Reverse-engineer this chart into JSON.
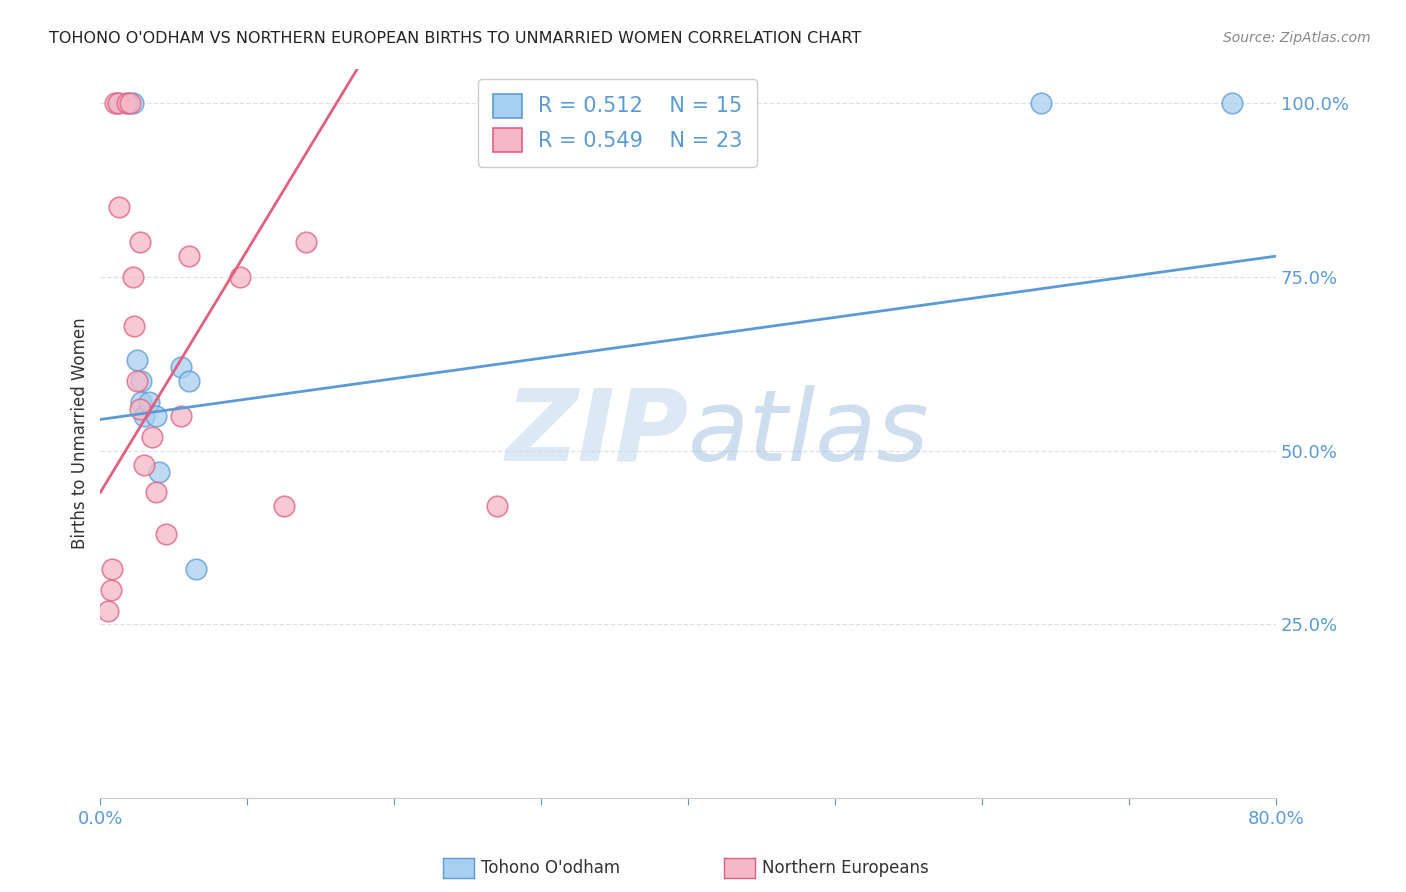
{
  "title": "TOHONO O'ODHAM VS NORTHERN EUROPEAN BIRTHS TO UNMARRIED WOMEN CORRELATION CHART",
  "source": "Source: ZipAtlas.com",
  "ylabel": "Births to Unmarried Women",
  "xlim": [
    0.0,
    0.8
  ],
  "ylim": [
    0.0,
    1.05
  ],
  "x_ticks": [
    0.0,
    0.1,
    0.2,
    0.3,
    0.4,
    0.5,
    0.6,
    0.7,
    0.8
  ],
  "x_tick_labels": [
    "0.0%",
    "",
    "",
    "",
    "",
    "",
    "",
    "",
    "80.0%"
  ],
  "y_ticks": [
    0.0,
    0.25,
    0.5,
    0.75,
    1.0
  ],
  "y_tick_labels": [
    "",
    "25.0%",
    "50.0%",
    "75.0%",
    "100.0%"
  ],
  "legend_r1": "R = 0.512",
  "legend_n1": "N = 15",
  "legend_r2": "R = 0.549",
  "legend_n2": "N = 23",
  "color_blue": "#a8cff0",
  "color_pink": "#f5b8c8",
  "color_blue_line": "#5b9bd5",
  "color_pink_line": "#e06080",
  "watermark_zip": "ZIP",
  "watermark_atlas": "atlas",
  "blue_scatter_x": [
    0.012,
    0.018,
    0.022,
    0.025,
    0.028,
    0.028,
    0.03,
    0.033,
    0.038,
    0.04,
    0.055,
    0.06,
    0.065,
    0.64,
    0.77
  ],
  "blue_scatter_y": [
    1.0,
    1.0,
    1.0,
    0.63,
    0.6,
    0.57,
    0.55,
    0.57,
    0.55,
    0.47,
    0.62,
    0.6,
    0.33,
    1.0,
    1.0
  ],
  "pink_scatter_x": [
    0.005,
    0.007,
    0.008,
    0.01,
    0.012,
    0.013,
    0.018,
    0.02,
    0.022,
    0.023,
    0.025,
    0.027,
    0.027,
    0.03,
    0.035,
    0.038,
    0.045,
    0.055,
    0.06,
    0.095,
    0.125,
    0.14,
    0.27
  ],
  "pink_scatter_y": [
    0.27,
    0.3,
    0.33,
    1.0,
    1.0,
    0.85,
    1.0,
    1.0,
    0.75,
    0.68,
    0.6,
    0.56,
    0.8,
    0.48,
    0.52,
    0.44,
    0.38,
    0.55,
    0.78,
    0.75,
    0.42,
    0.8,
    0.42
  ],
  "blue_trend_x": [
    0.0,
    0.8
  ],
  "blue_trend_y": [
    0.545,
    0.78
  ],
  "pink_trend_x": [
    0.0,
    0.175
  ],
  "pink_trend_y": [
    0.44,
    1.05
  ],
  "grid_color": "#dde0ea",
  "title_color": "#222222",
  "axis_color": "#5b9bd5",
  "bg_color": "#ffffff"
}
